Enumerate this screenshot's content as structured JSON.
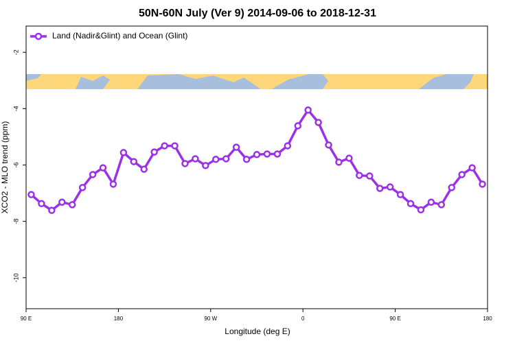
{
  "chart_data": {
    "type": "line",
    "title": "50N-60N July (Ver 9)   2014-09-06 to 2018-12-31",
    "x_label": "Longitude (deg E)",
    "y_label": "XCO2 - MLO trend (ppm)",
    "x": [
      95,
      105,
      115,
      125,
      135,
      145,
      155,
      165,
      175,
      185,
      195,
      205,
      215,
      225,
      235,
      245,
      255,
      265,
      275,
      285,
      295,
      305,
      315,
      325,
      335,
      345,
      355,
      365,
      375,
      385,
      395,
      405,
      415,
      425,
      435,
      445,
      455,
      465,
      475,
      485,
      495,
      505,
      515,
      525,
      535
    ],
    "series": [
      {
        "name": "Land (Nadir&Glint) and Ocean (Glint)",
        "color": "#9b30e8",
        "values": [
          -7.05,
          -7.37,
          -7.61,
          -7.32,
          -7.41,
          -6.8,
          -6.34,
          -6.1,
          -6.68,
          -5.56,
          -5.88,
          -6.15,
          -5.54,
          -5.32,
          -5.32,
          -5.95,
          -5.78,
          -6.02,
          -5.8,
          -5.78,
          -5.37,
          -5.8,
          -5.63,
          -5.61,
          -5.61,
          -5.32,
          -4.61,
          -4.05,
          -4.49,
          -5.29,
          -5.9,
          -5.76,
          -6.37,
          -6.39,
          -6.83,
          -6.78,
          -7.05,
          -7.37,
          -7.59,
          -7.32,
          -7.41,
          -6.8,
          -6.34,
          -6.1,
          -6.68
        ]
      }
    ],
    "xlim": [
      90,
      540
    ],
    "xticks": [
      {
        "value": 90,
        "label": "90 E"
      },
      {
        "value": 180,
        "label": "180"
      },
      {
        "value": 270,
        "label": "90 W"
      },
      {
        "value": 360,
        "label": "0"
      },
      {
        "value": 450,
        "label": "90 E"
      },
      {
        "value": 540,
        "label": "180"
      }
    ],
    "ylim": [
      -11.1,
      -1.07
    ],
    "yticks": [
      -10,
      -8,
      -6,
      -4,
      -2
    ],
    "legend": "top-left"
  }
}
